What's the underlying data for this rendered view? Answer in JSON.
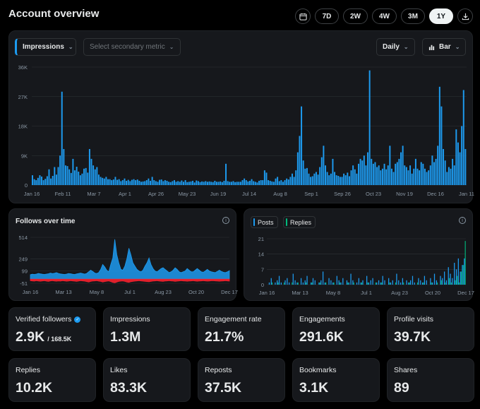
{
  "header": {
    "title": "Account overview",
    "ranges": [
      "7D",
      "2W",
      "4W",
      "3M",
      "1Y"
    ],
    "active_range": "1Y"
  },
  "main_chart": {
    "primary_metric": "Impressions",
    "secondary_placeholder": "Select secondary metric",
    "granularity": "Daily",
    "chart_type": "Bar"
  },
  "follows_card": {
    "title": "Follows over time"
  },
  "posts_card": {
    "chip_posts": "Posts",
    "chip_replies": "Replies"
  },
  "stats": [
    {
      "label": "Verified followers",
      "value": "2.9K",
      "sub": "/ 168.5K",
      "verified": true
    },
    {
      "label": "Impressions",
      "value": "1.3M"
    },
    {
      "label": "Engagement rate",
      "value": "21.7%"
    },
    {
      "label": "Engagements",
      "value": "291.6K"
    },
    {
      "label": "Profile visits",
      "value": "39.7K"
    },
    {
      "label": "Replies",
      "value": "10.2K"
    },
    {
      "label": "Likes",
      "value": "83.3K"
    },
    {
      "label": "Reposts",
      "value": "37.5K"
    },
    {
      "label": "Bookmarks",
      "value": "3.1K"
    },
    {
      "label": "Shares",
      "value": "89"
    }
  ],
  "colors": {
    "accent": "#1d9bf0",
    "reply_green": "#00ba7c",
    "negative_red": "#f4212e",
    "card_bg": "#16181c"
  },
  "chart_data": [
    {
      "type": "bar",
      "ylim": [
        0,
        36000
      ],
      "yticks": [
        "0",
        "9K",
        "18K",
        "27K",
        "36K"
      ],
      "xticks": [
        "Jan 16",
        "Feb 11",
        "Mar 7",
        "Apr 1",
        "Apr 26",
        "May 23",
        "Jun 19",
        "Jul 14",
        "Aug 8",
        "Sep 1",
        "Sep 26",
        "Oct 23",
        "Nov 19",
        "Dec 16",
        "Jan 11"
      ],
      "series": [
        {
          "values": [
            3000,
            1800,
            1500,
            2200,
            3000,
            2600,
            1500,
            1900,
            2700,
            4800,
            2000,
            2800,
            5500,
            3200,
            5500,
            9000,
            28500,
            11000,
            6000,
            5800,
            4800,
            3700,
            8000,
            4500,
            5600,
            4100,
            3000,
            3500,
            5000,
            5200,
            3800,
            11000,
            8000,
            6000,
            4800,
            5500,
            3200,
            2500,
            2200,
            2000,
            2500,
            1800,
            1800,
            1500,
            1700,
            2500,
            1600,
            1800,
            1200,
            1500,
            2000,
            1300,
            1600,
            1200,
            1600,
            1800,
            1500,
            1700,
            1300,
            1000,
            1100,
            1200,
            1500,
            2000,
            1300,
            2500,
            1500,
            1200,
            1000,
            1600,
            1700,
            1200,
            1500,
            1300,
            1000,
            900,
            1200,
            1500,
            1000,
            1200,
            1000,
            1400,
            1000,
            1500,
            900,
            1000,
            1100,
            1300,
            800,
            1400,
            1200,
            900,
            1100,
            1000,
            1200,
            1000,
            1100,
            1000,
            900,
            1300,
            1000,
            1000,
            1100,
            900,
            1300,
            6500,
            1200,
            1000,
            1000,
            1200,
            900,
            1000,
            1000,
            1000,
            1500,
            2000,
            1500,
            1100,
            1300,
            1800,
            1200,
            1000,
            800,
            1300,
            1500,
            1500,
            4500,
            3800,
            1500,
            1300,
            1100,
            1000,
            2000,
            2500,
            1200,
            1500,
            1000,
            1500,
            2000,
            1700,
            2500,
            3500,
            2500,
            4500,
            10000,
            15000,
            24000,
            7500,
            5000,
            5200,
            3500,
            2500,
            2700,
            3500,
            4000,
            3200,
            5500,
            8500,
            12000,
            6000,
            4000,
            3000,
            3500,
            8000,
            4000,
            3000,
            2800,
            2500,
            2500,
            3500,
            3000,
            3800,
            2700,
            4500,
            6000,
            4800,
            3500,
            6500,
            8000,
            7500,
            9000,
            6000,
            10000,
            35000,
            8000,
            6500,
            7000,
            5500,
            6000,
            4500,
            5000,
            6500,
            4800,
            6000,
            12000,
            5000,
            4000,
            6500,
            7000,
            8000,
            10000,
            12000,
            6000,
            5500,
            4500,
            6000,
            3500,
            5000,
            8000,
            5000,
            4500,
            7000,
            6500,
            5000,
            4000,
            4500,
            6000,
            9000,
            7000,
            8000,
            12000,
            30000,
            24000,
            11000,
            7500,
            4000,
            5500,
            5000,
            8000,
            6000,
            17000,
            13000,
            10000,
            18000,
            29000,
            11000
          ]
        }
      ]
    },
    {
      "type": "area",
      "ylim": [
        -51,
        514
      ],
      "yticks": [
        "514",
        "249",
        "99",
        "-51"
      ],
      "xticks": [
        "Jan 16",
        "Mar 13",
        "May 8",
        "Jul 1",
        "Aug 23",
        "Oct 20",
        "Dec 17"
      ],
      "series": [
        {
          "values": [
            55,
            60,
            58,
            62,
            70,
            65,
            60,
            58,
            62,
            66,
            75,
            68,
            72,
            80,
            70,
            64,
            60,
            58,
            62,
            70,
            66,
            60,
            58,
            64,
            70,
            75,
            68,
            62,
            70,
            90,
            110,
            95,
            75,
            70,
            80,
            120,
            180,
            150,
            110,
            90,
            180,
            260,
            490,
            300,
            200,
            120,
            110,
            160,
            250,
            380,
            300,
            200,
            160,
            120,
            100,
            90,
            110,
            160,
            200,
            260,
            180,
            130,
            100,
            90,
            110,
            130,
            140,
            120,
            100,
            80,
            90,
            110,
            140,
            120,
            90,
            80,
            90,
            100,
            130,
            110,
            90,
            90,
            110,
            130,
            110,
            90,
            85,
            100,
            120,
            100,
            90,
            85,
            80,
            95,
            110,
            95,
            85,
            80,
            90,
            105
          ]
        },
        {
          "values": [
            -20,
            -22,
            -25,
            -20,
            -24,
            -26,
            -22,
            -20,
            -25,
            -28,
            -22,
            -20,
            -24,
            -26,
            -22,
            -25,
            -20,
            -22,
            -26,
            -24,
            -20,
            -22,
            -25,
            -28,
            -24,
            -20,
            -22,
            -25,
            -30,
            -35,
            -28,
            -24,
            -22,
            -20,
            -25,
            -28,
            -35,
            -30,
            -26,
            -22,
            -30,
            -40,
            -45,
            -35,
            -28,
            -25,
            -22,
            -28,
            -35,
            -40,
            -32,
            -28,
            -25,
            -22,
            -20,
            -22,
            -25,
            -28,
            -30,
            -32,
            -28,
            -24,
            -22,
            -20,
            -24,
            -26,
            -28,
            -24,
            -22,
            -20,
            -22,
            -24,
            -28,
            -25,
            -22,
            -20,
            -22,
            -24,
            -26,
            -24,
            -22,
            -20,
            -24,
            -26,
            -24,
            -22,
            -20,
            -22,
            -25,
            -23,
            -21,
            -20,
            -22,
            -24,
            -26,
            -24,
            -22,
            -20,
            -22,
            -24
          ]
        }
      ]
    },
    {
      "type": "bar",
      "ylim": [
        0,
        21
      ],
      "yticks": [
        "21",
        "14",
        "7",
        "0"
      ],
      "xticks": [
        "Jan 16",
        "Mar 13",
        "May 8",
        "Jul 1",
        "Aug 23",
        "Oct 20",
        "Dec 17"
      ],
      "series": [
        {
          "values": [
            0,
            1,
            3,
            0,
            1,
            2,
            4,
            1,
            0,
            2,
            3,
            1,
            0,
            5,
            2,
            1,
            0,
            3,
            1,
            2,
            4,
            0,
            1,
            3,
            2,
            0,
            1,
            2,
            6,
            1,
            0,
            3,
            2,
            1,
            0,
            4,
            2,
            1,
            3,
            0,
            2,
            1,
            5,
            2,
            0,
            1,
            3,
            1,
            2,
            0,
            4,
            1,
            2,
            3,
            0,
            1,
            2,
            1,
            4,
            2,
            0,
            3,
            1,
            2,
            0,
            5,
            2,
            1,
            3,
            0,
            2,
            1,
            2,
            4,
            1,
            0,
            3,
            2,
            1,
            4,
            2,
            0,
            3,
            1,
            5,
            2,
            0,
            4,
            3,
            6,
            2,
            8,
            5,
            3,
            10,
            7,
            12,
            6,
            9,
            12
          ]
        },
        {
          "values": [
            0,
            0,
            1,
            0,
            0,
            1,
            0,
            0,
            1,
            0,
            0,
            0,
            1,
            0,
            0,
            1,
            0,
            0,
            0,
            1,
            0,
            0,
            1,
            0,
            0,
            0,
            1,
            0,
            0,
            1,
            0,
            0,
            0,
            1,
            0,
            0,
            1,
            0,
            0,
            0,
            1,
            0,
            0,
            1,
            0,
            0,
            0,
            1,
            0,
            0,
            1,
            0,
            0,
            0,
            1,
            0,
            0,
            1,
            0,
            0,
            0,
            1,
            0,
            0,
            1,
            0,
            0,
            0,
            1,
            0,
            0,
            1,
            0,
            0,
            0,
            1,
            0,
            0,
            1,
            0,
            0,
            0,
            1,
            0,
            0,
            1,
            0,
            2,
            0,
            1,
            0,
            3,
            1,
            0,
            2,
            4,
            1,
            6,
            9,
            20
          ]
        }
      ]
    }
  ]
}
